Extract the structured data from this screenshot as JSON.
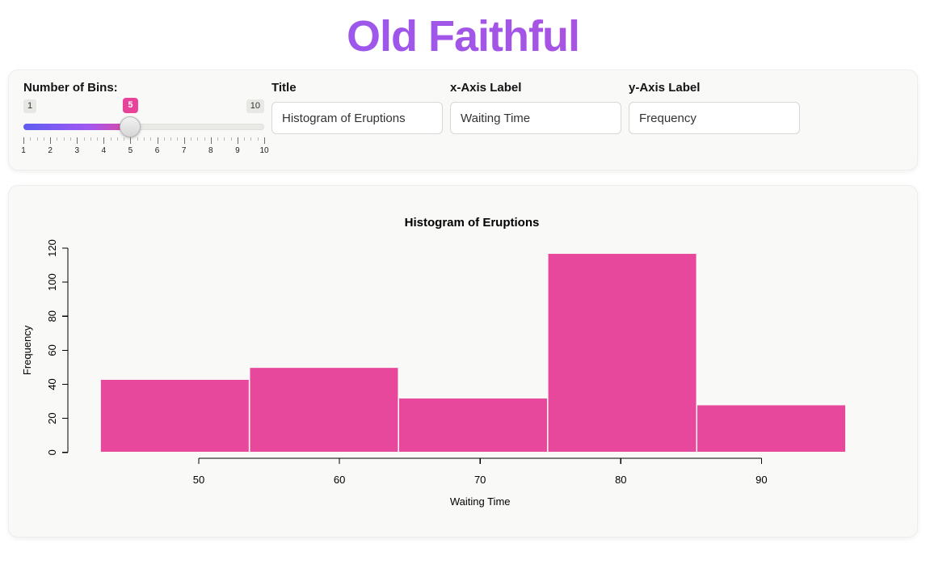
{
  "page": {
    "title": "Old Faithful"
  },
  "theme": {
    "accent_pink": "#e8439a",
    "title_gradient_start": "#8b5cf6",
    "title_gradient_end": "#c04ed0",
    "card_background": "#f9f9f8"
  },
  "controls": {
    "bins_slider": {
      "label": "Number of Bins:",
      "min": 1,
      "max": 10,
      "value": 5,
      "min_label": "1",
      "max_label": "10",
      "value_label": "5",
      "tick_labels": [
        "1",
        "2",
        "3",
        "4",
        "5",
        "6",
        "7",
        "8",
        "9",
        "10"
      ],
      "minor_ticks_per_interval": 3
    },
    "title_input": {
      "label": "Title",
      "value": "Histogram of Eruptions"
    },
    "xlab_input": {
      "label": "x-Axis Label",
      "value": "Waiting Time"
    },
    "ylab_input": {
      "label": "y-Axis Label",
      "value": "Frequency"
    }
  },
  "chart_data": {
    "type": "bar",
    "subtype": "histogram",
    "title": "Histogram of Eruptions",
    "xlabel": "Waiting Time",
    "ylabel": "Frequency",
    "bin_breaks": [
      43,
      53.6,
      64.2,
      74.8,
      85.4,
      96
    ],
    "counts": [
      43,
      50,
      32,
      117,
      28
    ],
    "x_ticks": [
      50,
      60,
      70,
      80,
      90
    ],
    "y_ticks": [
      0,
      20,
      40,
      60,
      80,
      100,
      120
    ],
    "xlim": [
      43,
      96
    ],
    "ylim": [
      0,
      120
    ],
    "grid": false,
    "legend": false,
    "bar_color": "#e8489c",
    "bar_border_color": "#f9f9f8",
    "axis_color": "#000000",
    "plot_background": "#f9f9f8"
  }
}
